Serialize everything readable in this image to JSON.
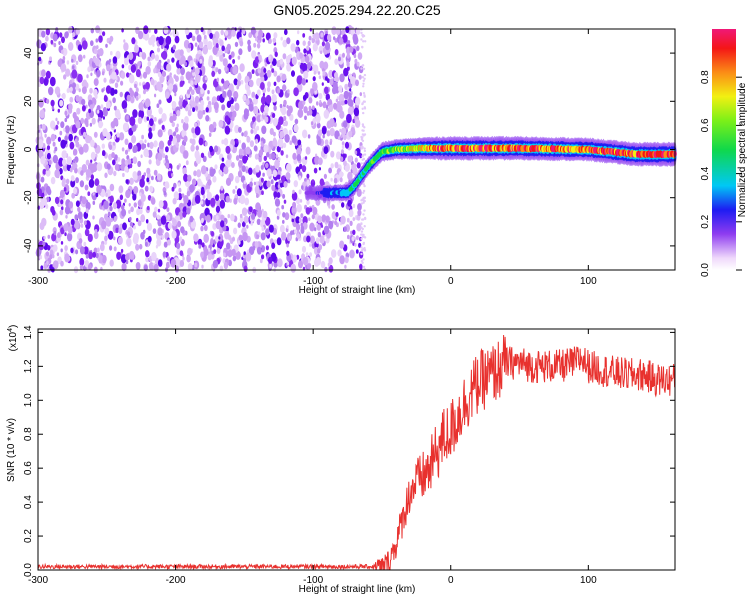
{
  "title": "GN05.2025.294.22.20.C25",
  "colorbar": {
    "label": "Normalized spectral amplitude",
    "ticks": [
      "0.0",
      "0.2",
      "0.4",
      "0.6",
      "0.8"
    ],
    "tick_values": [
      0.0,
      0.2,
      0.4,
      0.6,
      0.8
    ],
    "range": [
      0,
      1
    ]
  },
  "chart_data": [
    {
      "type": "heatmap",
      "panel": "spectrogram",
      "xlabel": "Height of straight line (km)",
      "ylabel": "Frequency (Hz)",
      "xlim": [
        -300,
        163
      ],
      "ylim": [
        -50,
        50
      ],
      "xticks": [
        -300,
        -200,
        -100,
        0,
        100
      ],
      "xtick_labels": [
        "-300",
        "-200",
        "-100",
        "0",
        "100"
      ],
      "yticks": [
        -40,
        -20,
        0,
        20,
        40
      ],
      "ytick_labels": [
        "-40",
        "-20",
        "0",
        "20",
        "40"
      ],
      "noise_region_x": [
        -300,
        -65
      ],
      "signal_track": {
        "x": [
          -105,
          -75,
          -70,
          -60,
          -50,
          -40,
          -20,
          0,
          50,
          100,
          135,
          163
        ],
        "freq": [
          -18,
          -18,
          -15,
          -7,
          -1,
          0,
          0.5,
          0.5,
          0.5,
          0,
          -2,
          -2
        ],
        "amplitude": [
          0.1,
          0.35,
          0.45,
          0.45,
          0.55,
          0.6,
          0.8,
          0.95,
          0.95,
          0.9,
          0.95,
          1.0
        ]
      }
    },
    {
      "type": "line",
      "panel": "snr",
      "xlabel": "Height of straight line (km)",
      "ylabel": "SNR (10 * v/v)",
      "scale_label": "(x10",
      "scale_exponent": "4",
      "xlim": [
        -300,
        163
      ],
      "ylim": [
        0,
        1.42
      ],
      "xticks": [
        -300,
        -200,
        -100,
        0,
        100
      ],
      "xtick_labels": [
        "-300",
        "-200",
        "-100",
        "0",
        "100"
      ],
      "yticks": [
        0.0,
        0.2,
        0.4,
        0.6,
        0.8,
        1.0,
        1.2,
        1.4
      ],
      "ytick_labels": [
        "0.0",
        "0.2",
        "0.4",
        "0.6",
        "0.8",
        "1.0",
        "1.2",
        "1.4"
      ],
      "color": "#e8312e",
      "series": [
        {
          "x": [
            -300,
            -250,
            -200,
            -150,
            -100,
            -60,
            -50,
            -45,
            -40,
            -35,
            -30,
            -25,
            -20,
            -15,
            -10,
            -5,
            0,
            5,
            10,
            15,
            20,
            25,
            30,
            35,
            40,
            50,
            60,
            70,
            80,
            90,
            95,
            100,
            110,
            120,
            130,
            140,
            150,
            163
          ],
          "y": [
            0.02,
            0.02,
            0.02,
            0.02,
            0.02,
            0.02,
            0.02,
            0.05,
            0.15,
            0.3,
            0.45,
            0.52,
            0.55,
            0.6,
            0.7,
            0.78,
            0.82,
            0.9,
            0.98,
            1.05,
            1.1,
            1.13,
            1.15,
            1.18,
            1.22,
            1.22,
            1.2,
            1.2,
            1.2,
            1.22,
            1.25,
            1.2,
            1.18,
            1.16,
            1.15,
            1.15,
            1.12,
            1.12
          ]
        }
      ]
    }
  ]
}
